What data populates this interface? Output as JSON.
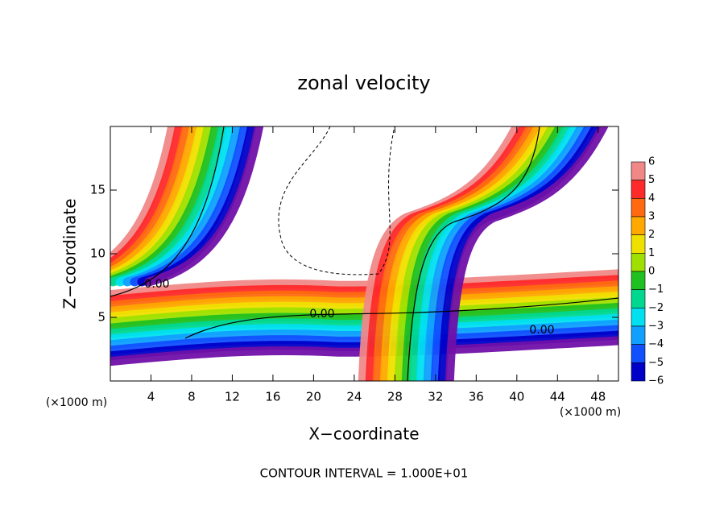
{
  "chart_data": {
    "type": "contour",
    "title": "zonal velocity",
    "x_label": "X−coordinate",
    "y_label": "Z−coordinate",
    "x_unit": "(×1000 m)",
    "x_unit_right": "(×1000 m)",
    "footer": "CONTOUR INTERVAL = 1.000E+01",
    "contour_labels": [
      "0.00",
      "0.00",
      "0.00"
    ],
    "xlim": [
      0,
      50
    ],
    "xticks": [
      4,
      8,
      12,
      16,
      20,
      24,
      28,
      32,
      36,
      40,
      44,
      48
    ],
    "ylim": [
      0,
      20
    ],
    "yticks": [
      5,
      10,
      15
    ],
    "colorbar": {
      "levels": [
        6,
        5,
        4,
        3,
        2,
        1,
        0,
        -1,
        -2,
        -3,
        -4,
        -5,
        -6
      ],
      "level_labels": [
        {
          "value": 6,
          "label": "6"
        },
        {
          "value": 5,
          "label": "5"
        },
        {
          "value": 4,
          "label": "4"
        },
        {
          "value": 3,
          "label": "3"
        },
        {
          "value": 2,
          "label": "2"
        },
        {
          "value": 1,
          "label": "1"
        },
        {
          "value": 0,
          "label": "0"
        },
        {
          "value": -1,
          "label": "−1"
        },
        {
          "value": -2,
          "label": "−2"
        },
        {
          "value": -3,
          "label": "−3"
        },
        {
          "value": -4,
          "label": "−4"
        },
        {
          "value": -5,
          "label": "−5"
        },
        {
          "value": -6,
          "label": "−6"
        }
      ],
      "colors": [
        "#f08888",
        "#ff2a2a",
        "#ff6a10",
        "#ffa800",
        "#f0e000",
        "#a0e000",
        "#20c020",
        "#00d890",
        "#00e0f0",
        "#10a0ff",
        "#1050ff",
        "#0000c8",
        "#7010a8"
      ]
    }
  }
}
